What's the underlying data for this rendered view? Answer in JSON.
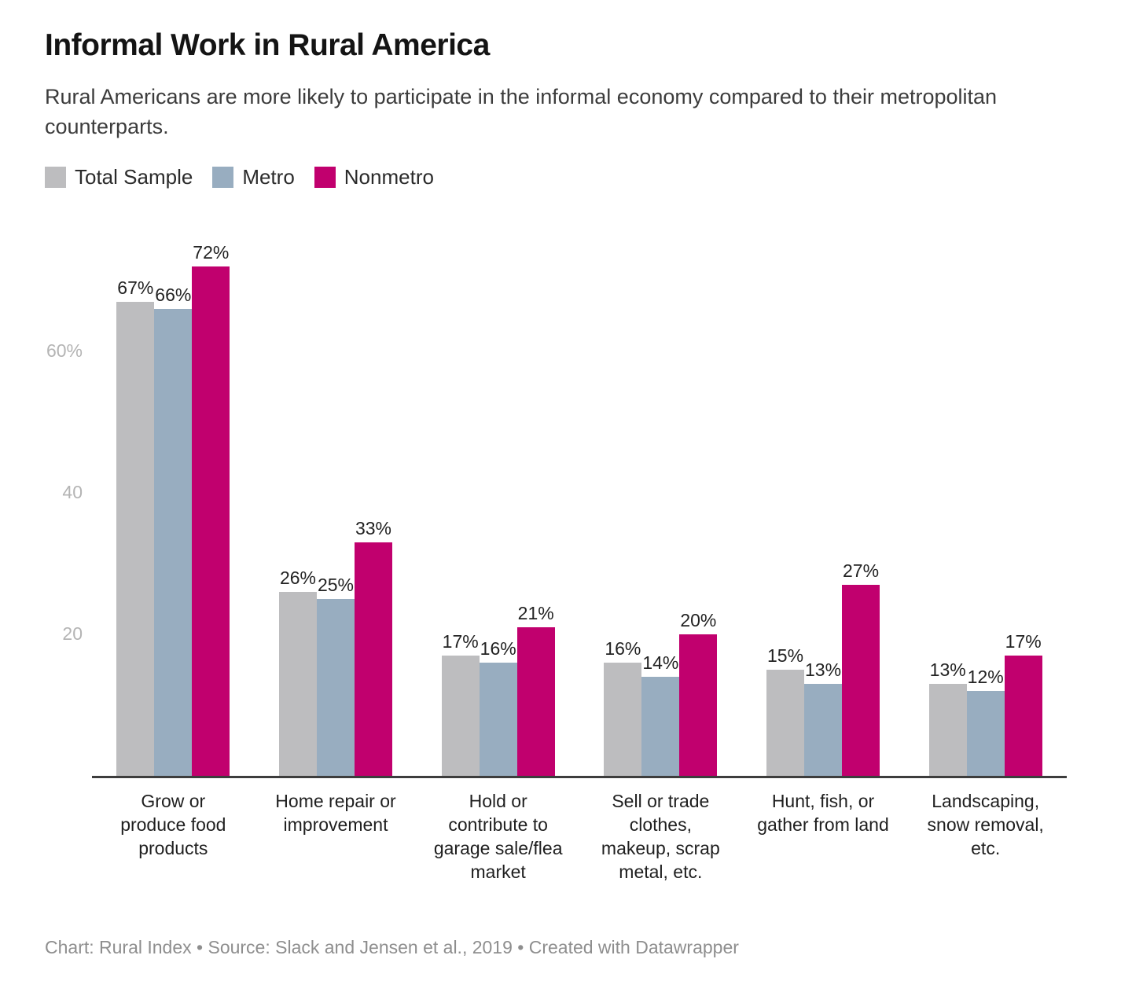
{
  "header": {
    "title": "Informal Work in Rural America",
    "subtitle": "Rural Americans are more likely to participate in the informal economy compared to their metropolitan counterparts."
  },
  "chart_data": {
    "type": "bar",
    "title": "Informal Work in Rural America",
    "categories": [
      "Grow or produce food products",
      "Home repair or improvement",
      "Hold or contribute to garage sale/flea market",
      "Sell or trade clothes, makeup, scrap metal, etc.",
      "Hunt, fish, or gather from land",
      "Landscaping, snow removal, etc."
    ],
    "series": [
      {
        "name": "Total Sample",
        "color": "#bdbdbf",
        "values": [
          67,
          26,
          17,
          16,
          15,
          13
        ]
      },
      {
        "name": "Metro",
        "color": "#98adc0",
        "values": [
          66,
          25,
          16,
          14,
          13,
          12
        ]
      },
      {
        "name": "Nonmetro",
        "color": "#c1006e",
        "values": [
          72,
          33,
          21,
          20,
          27,
          17
        ]
      }
    ],
    "value_suffix": "%",
    "y_ticks": [
      {
        "value": 20,
        "label": "20"
      },
      {
        "value": 40,
        "label": "40"
      },
      {
        "value": 60,
        "label": "60%"
      }
    ],
    "ylim": [
      0,
      72
    ],
    "xlabel": "",
    "ylabel": "",
    "grid": false,
    "legend_position": "top",
    "axis_color": "#3d3d3d"
  },
  "footer": {
    "text": "Chart: Rural Index • Source: Slack and Jensen et al., 2019 • Created with Datawrapper"
  }
}
